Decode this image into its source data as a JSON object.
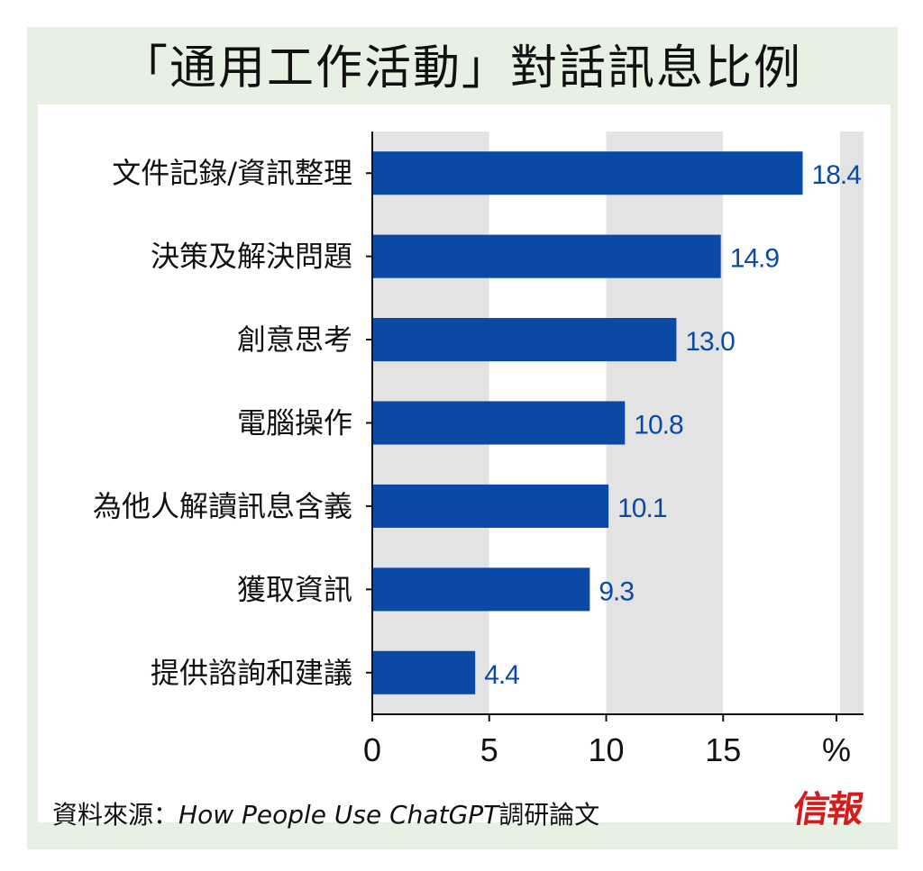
{
  "title": "「通用工作活動」對話訊息比例",
  "source": {
    "prefix": "資料來源：",
    "publication": "How People Use ChatGPT",
    "suffix": "調研論文"
  },
  "logo_text": "信報",
  "colors": {
    "bar": "#0a4aa6",
    "value_label": "#0a4aa6",
    "band": "#e3e3e3",
    "frame": "#e6f1e4"
  },
  "chart_data": {
    "type": "bar",
    "orientation": "horizontal",
    "categories": [
      "文件記錄/資訊整理",
      "決策及解決問題",
      "創意思考",
      "電腦操作",
      "為他人解讀訊息含義",
      "獲取資訊",
      "提供諮詢和建議"
    ],
    "values": [
      18.4,
      14.9,
      13.0,
      10.8,
      10.1,
      9.3,
      4.4
    ],
    "value_labels": [
      "18.4",
      "14.9",
      "13.0",
      "10.8",
      "10.1",
      "9.3",
      "4.4"
    ],
    "xlim": [
      0,
      21
    ],
    "xticks": [
      0,
      5,
      10,
      15
    ],
    "xtick_labels": [
      "0",
      "5",
      "10",
      "15"
    ],
    "xunit": "%",
    "background_bands": "alternating grey every 5 units",
    "legend": "none"
  }
}
